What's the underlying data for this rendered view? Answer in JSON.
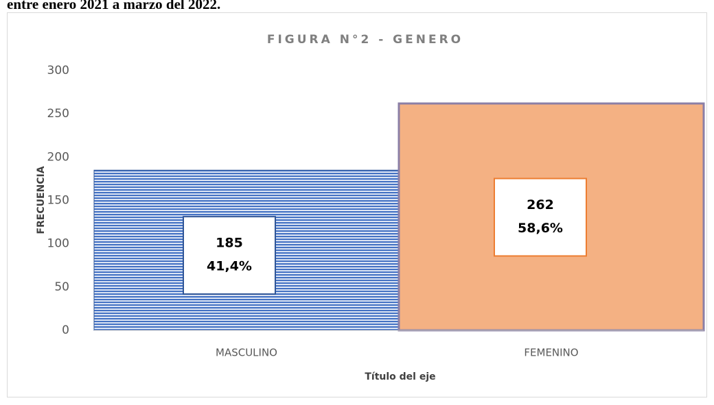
{
  "caption": "entre enero 2021 a marzo del 2022.",
  "chart_data": {
    "type": "bar",
    "title": "FIGURA N°2 - GENERO",
    "x_label": "Título del eje",
    "y_label": "FRECUENCIA",
    "categories": [
      "MASCULINO",
      "FEMENINO"
    ],
    "values": [
      185,
      262
    ],
    "percent_labels": [
      "41,4%",
      "58,6%"
    ],
    "colors": [
      "#4472c4",
      "#f4b183"
    ],
    "ylim": [
      0,
      300
    ],
    "yticks": [
      0,
      50,
      100,
      150,
      200,
      250,
      300
    ],
    "grid": false
  }
}
